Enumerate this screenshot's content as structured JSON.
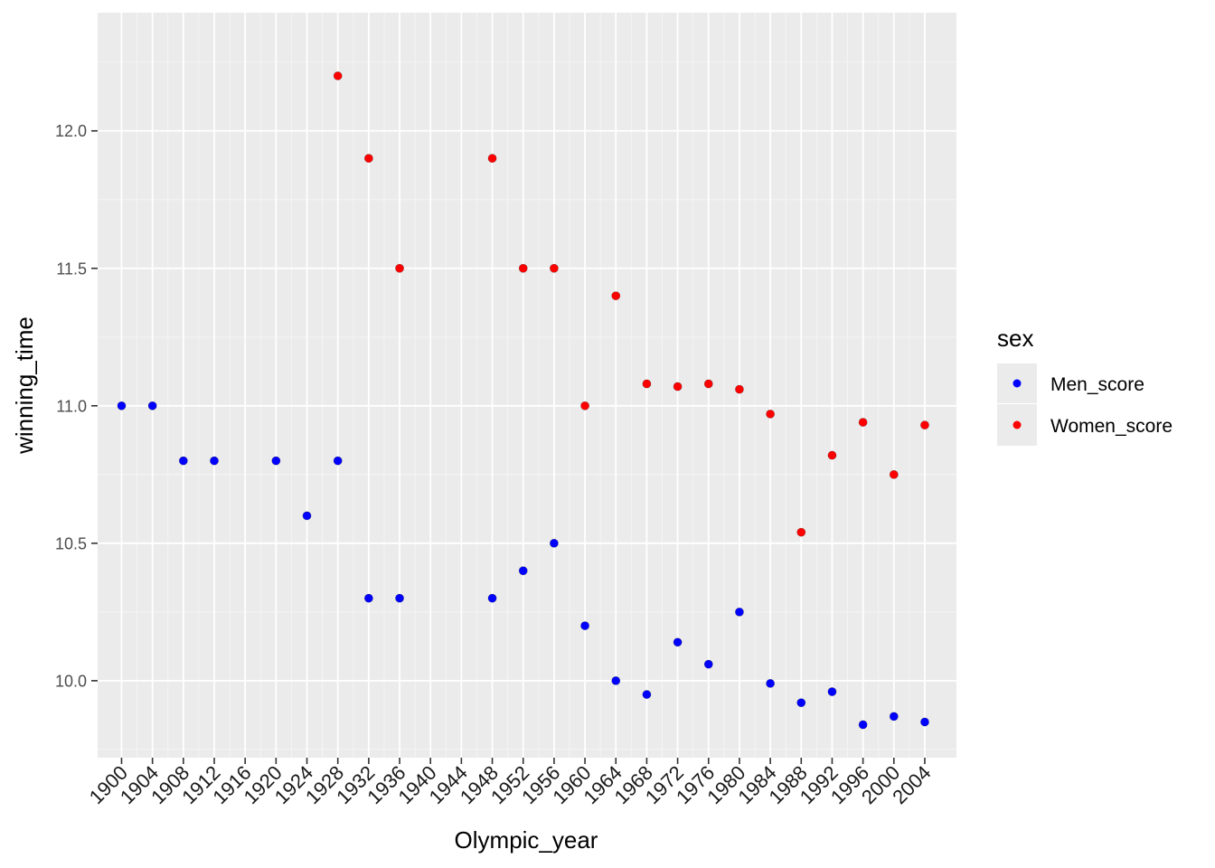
{
  "chart_data": {
    "type": "scatter",
    "title": "",
    "xlabel": "Olympic_year",
    "ylabel": "winning_time",
    "x_ticks": [
      1900,
      1904,
      1908,
      1912,
      1916,
      1920,
      1924,
      1928,
      1932,
      1936,
      1940,
      1944,
      1948,
      1952,
      1956,
      1960,
      1964,
      1968,
      1972,
      1976,
      1980,
      1984,
      1988,
      1992,
      1996,
      2000,
      2004
    ],
    "y_ticks": [
      "10.0",
      "10.5",
      "11.0",
      "11.5",
      "12.0"
    ],
    "y_tick_values": [
      10.0,
      10.5,
      11.0,
      11.5,
      12.0
    ],
    "xlim": [
      1896.9,
      2008.1
    ],
    "ylim": [
      9.72,
      12.43
    ],
    "grid": true,
    "legend": {
      "title": "sex",
      "placement": "right"
    },
    "series": [
      {
        "name": "Men_score",
        "color": "#0000ff",
        "points": [
          {
            "x": 1900,
            "y": 11.0
          },
          {
            "x": 1904,
            "y": 11.0
          },
          {
            "x": 1908,
            "y": 10.8
          },
          {
            "x": 1912,
            "y": 10.8
          },
          {
            "x": 1920,
            "y": 10.8
          },
          {
            "x": 1924,
            "y": 10.6
          },
          {
            "x": 1928,
            "y": 10.8
          },
          {
            "x": 1932,
            "y": 10.3
          },
          {
            "x": 1936,
            "y": 10.3
          },
          {
            "x": 1948,
            "y": 10.3
          },
          {
            "x": 1952,
            "y": 10.4
          },
          {
            "x": 1956,
            "y": 10.5
          },
          {
            "x": 1960,
            "y": 10.2
          },
          {
            "x": 1964,
            "y": 10.0
          },
          {
            "x": 1968,
            "y": 9.95
          },
          {
            "x": 1972,
            "y": 10.14
          },
          {
            "x": 1976,
            "y": 10.06
          },
          {
            "x": 1980,
            "y": 10.25
          },
          {
            "x": 1984,
            "y": 9.99
          },
          {
            "x": 1988,
            "y": 9.92
          },
          {
            "x": 1992,
            "y": 9.96
          },
          {
            "x": 1996,
            "y": 9.84
          },
          {
            "x": 2000,
            "y": 9.87
          },
          {
            "x": 2004,
            "y": 9.85
          }
        ]
      },
      {
        "name": "Women_score",
        "color": "#ff0000",
        "points": [
          {
            "x": 1928,
            "y": 12.2
          },
          {
            "x": 1932,
            "y": 11.9
          },
          {
            "x": 1936,
            "y": 11.5
          },
          {
            "x": 1948,
            "y": 11.9
          },
          {
            "x": 1952,
            "y": 11.5
          },
          {
            "x": 1956,
            "y": 11.5
          },
          {
            "x": 1960,
            "y": 11.0
          },
          {
            "x": 1964,
            "y": 11.4
          },
          {
            "x": 1968,
            "y": 11.08
          },
          {
            "x": 1972,
            "y": 11.07
          },
          {
            "x": 1976,
            "y": 11.08
          },
          {
            "x": 1980,
            "y": 11.06
          },
          {
            "x": 1984,
            "y": 10.97
          },
          {
            "x": 1988,
            "y": 10.54
          },
          {
            "x": 1992,
            "y": 10.82
          },
          {
            "x": 1996,
            "y": 10.94
          },
          {
            "x": 2000,
            "y": 10.75
          },
          {
            "x": 2004,
            "y": 10.93
          }
        ]
      }
    ]
  }
}
